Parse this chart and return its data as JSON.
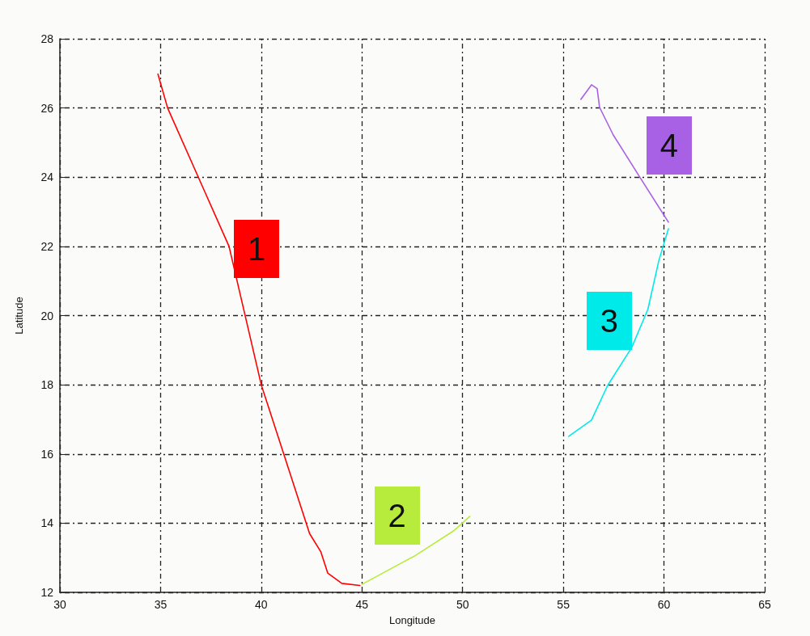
{
  "chart_data": {
    "type": "line",
    "xlabel": "Longitude",
    "ylabel": "Latitude",
    "xlim": [
      30,
      65
    ],
    "xticks": [
      30,
      35,
      40,
      45,
      50,
      55,
      60,
      65
    ],
    "ylim": [
      12,
      28
    ],
    "yticks": [
      12,
      14,
      16,
      18,
      20,
      22,
      24,
      26,
      28
    ],
    "grid": true,
    "legend": false,
    "marker": "none",
    "line_style": "solid",
    "series": [
      {
        "name": "1",
        "color": "#ff0000",
        "x": [
          34.87,
          35.35,
          38.4,
          40.0,
          42.4,
          42.96,
          43.3,
          44.0,
          44.9
        ],
        "values": [
          26.98,
          26.0,
          22.0,
          18.0,
          13.7,
          13.17,
          12.56,
          12.26,
          12.2
        ]
      },
      {
        "name": "2",
        "color": "#b8ec3c",
        "x": [
          45.0,
          47.67,
          49.56,
          50.36
        ],
        "values": [
          12.23,
          13.07,
          13.78,
          14.2
        ]
      },
      {
        "name": "3",
        "color": "#00eaea",
        "x": [
          55.27,
          56.4,
          57.2,
          58.4,
          59.2,
          59.74,
          60.22
        ],
        "values": [
          16.51,
          16.98,
          17.98,
          19.08,
          20.18,
          21.58,
          22.51
        ]
      },
      {
        "name": "4",
        "color": "#a860e4",
        "x": [
          55.87,
          56.4,
          56.68,
          56.8,
          57.48,
          58.81,
          60.22
        ],
        "values": [
          26.25,
          26.67,
          26.56,
          26.02,
          25.22,
          23.99,
          22.7
        ]
      }
    ]
  }
}
